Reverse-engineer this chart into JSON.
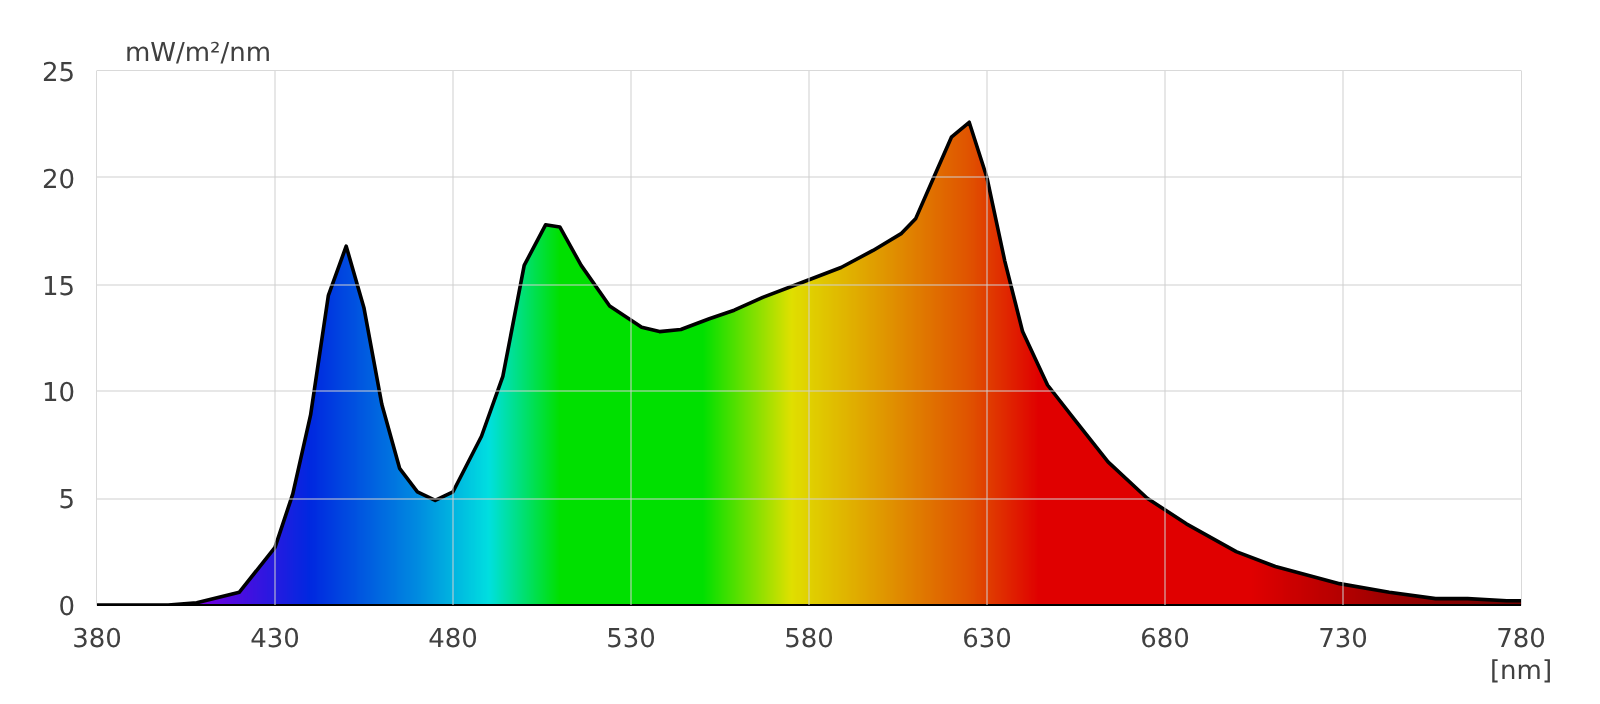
{
  "chart_data": {
    "type": "area",
    "xlabel": "[nm]",
    "ylabel": "mW/m²/nm",
    "xlim": [
      380,
      780
    ],
    "ylim": [
      0,
      25
    ],
    "xticks": [
      380,
      430,
      480,
      530,
      580,
      630,
      680,
      730,
      780
    ],
    "yticks": [
      0,
      5,
      10,
      15,
      20,
      25
    ],
    "grid": true,
    "x": [
      380,
      400,
      408,
      420,
      430,
      435,
      440,
      445,
      450,
      455,
      460,
      465,
      470,
      475,
      480,
      488,
      494,
      500,
      506,
      510,
      516,
      524,
      533,
      538,
      544,
      552,
      559,
      567,
      578,
      589,
      598,
      606,
      610,
      615,
      620,
      625,
      630,
      635,
      640,
      647,
      655,
      664,
      675,
      686,
      700,
      711,
      729,
      743,
      756,
      765,
      776,
      780
    ],
    "series": [
      {
        "color": "#000000",
        "values": [
          0,
          0,
          0.1,
          0.6,
          2.7,
          5.2,
          8.9,
          14.5,
          16.8,
          13.9,
          9.4,
          6.4,
          5.3,
          4.9,
          5.3,
          7.9,
          10.7,
          15.9,
          17.8,
          17.7,
          15.9,
          14.0,
          13.0,
          12.8,
          12.9,
          13.4,
          13.8,
          14.4,
          15.1,
          15.8,
          16.6,
          17.4,
          18.1,
          20.0,
          21.9,
          22.6,
          20.0,
          16.1,
          12.8,
          10.3,
          8.6,
          6.7,
          5.0,
          3.8,
          2.5,
          1.8,
          1.0,
          0.6,
          0.3,
          0.3,
          0.2,
          0.2
        ]
      }
    ]
  }
}
